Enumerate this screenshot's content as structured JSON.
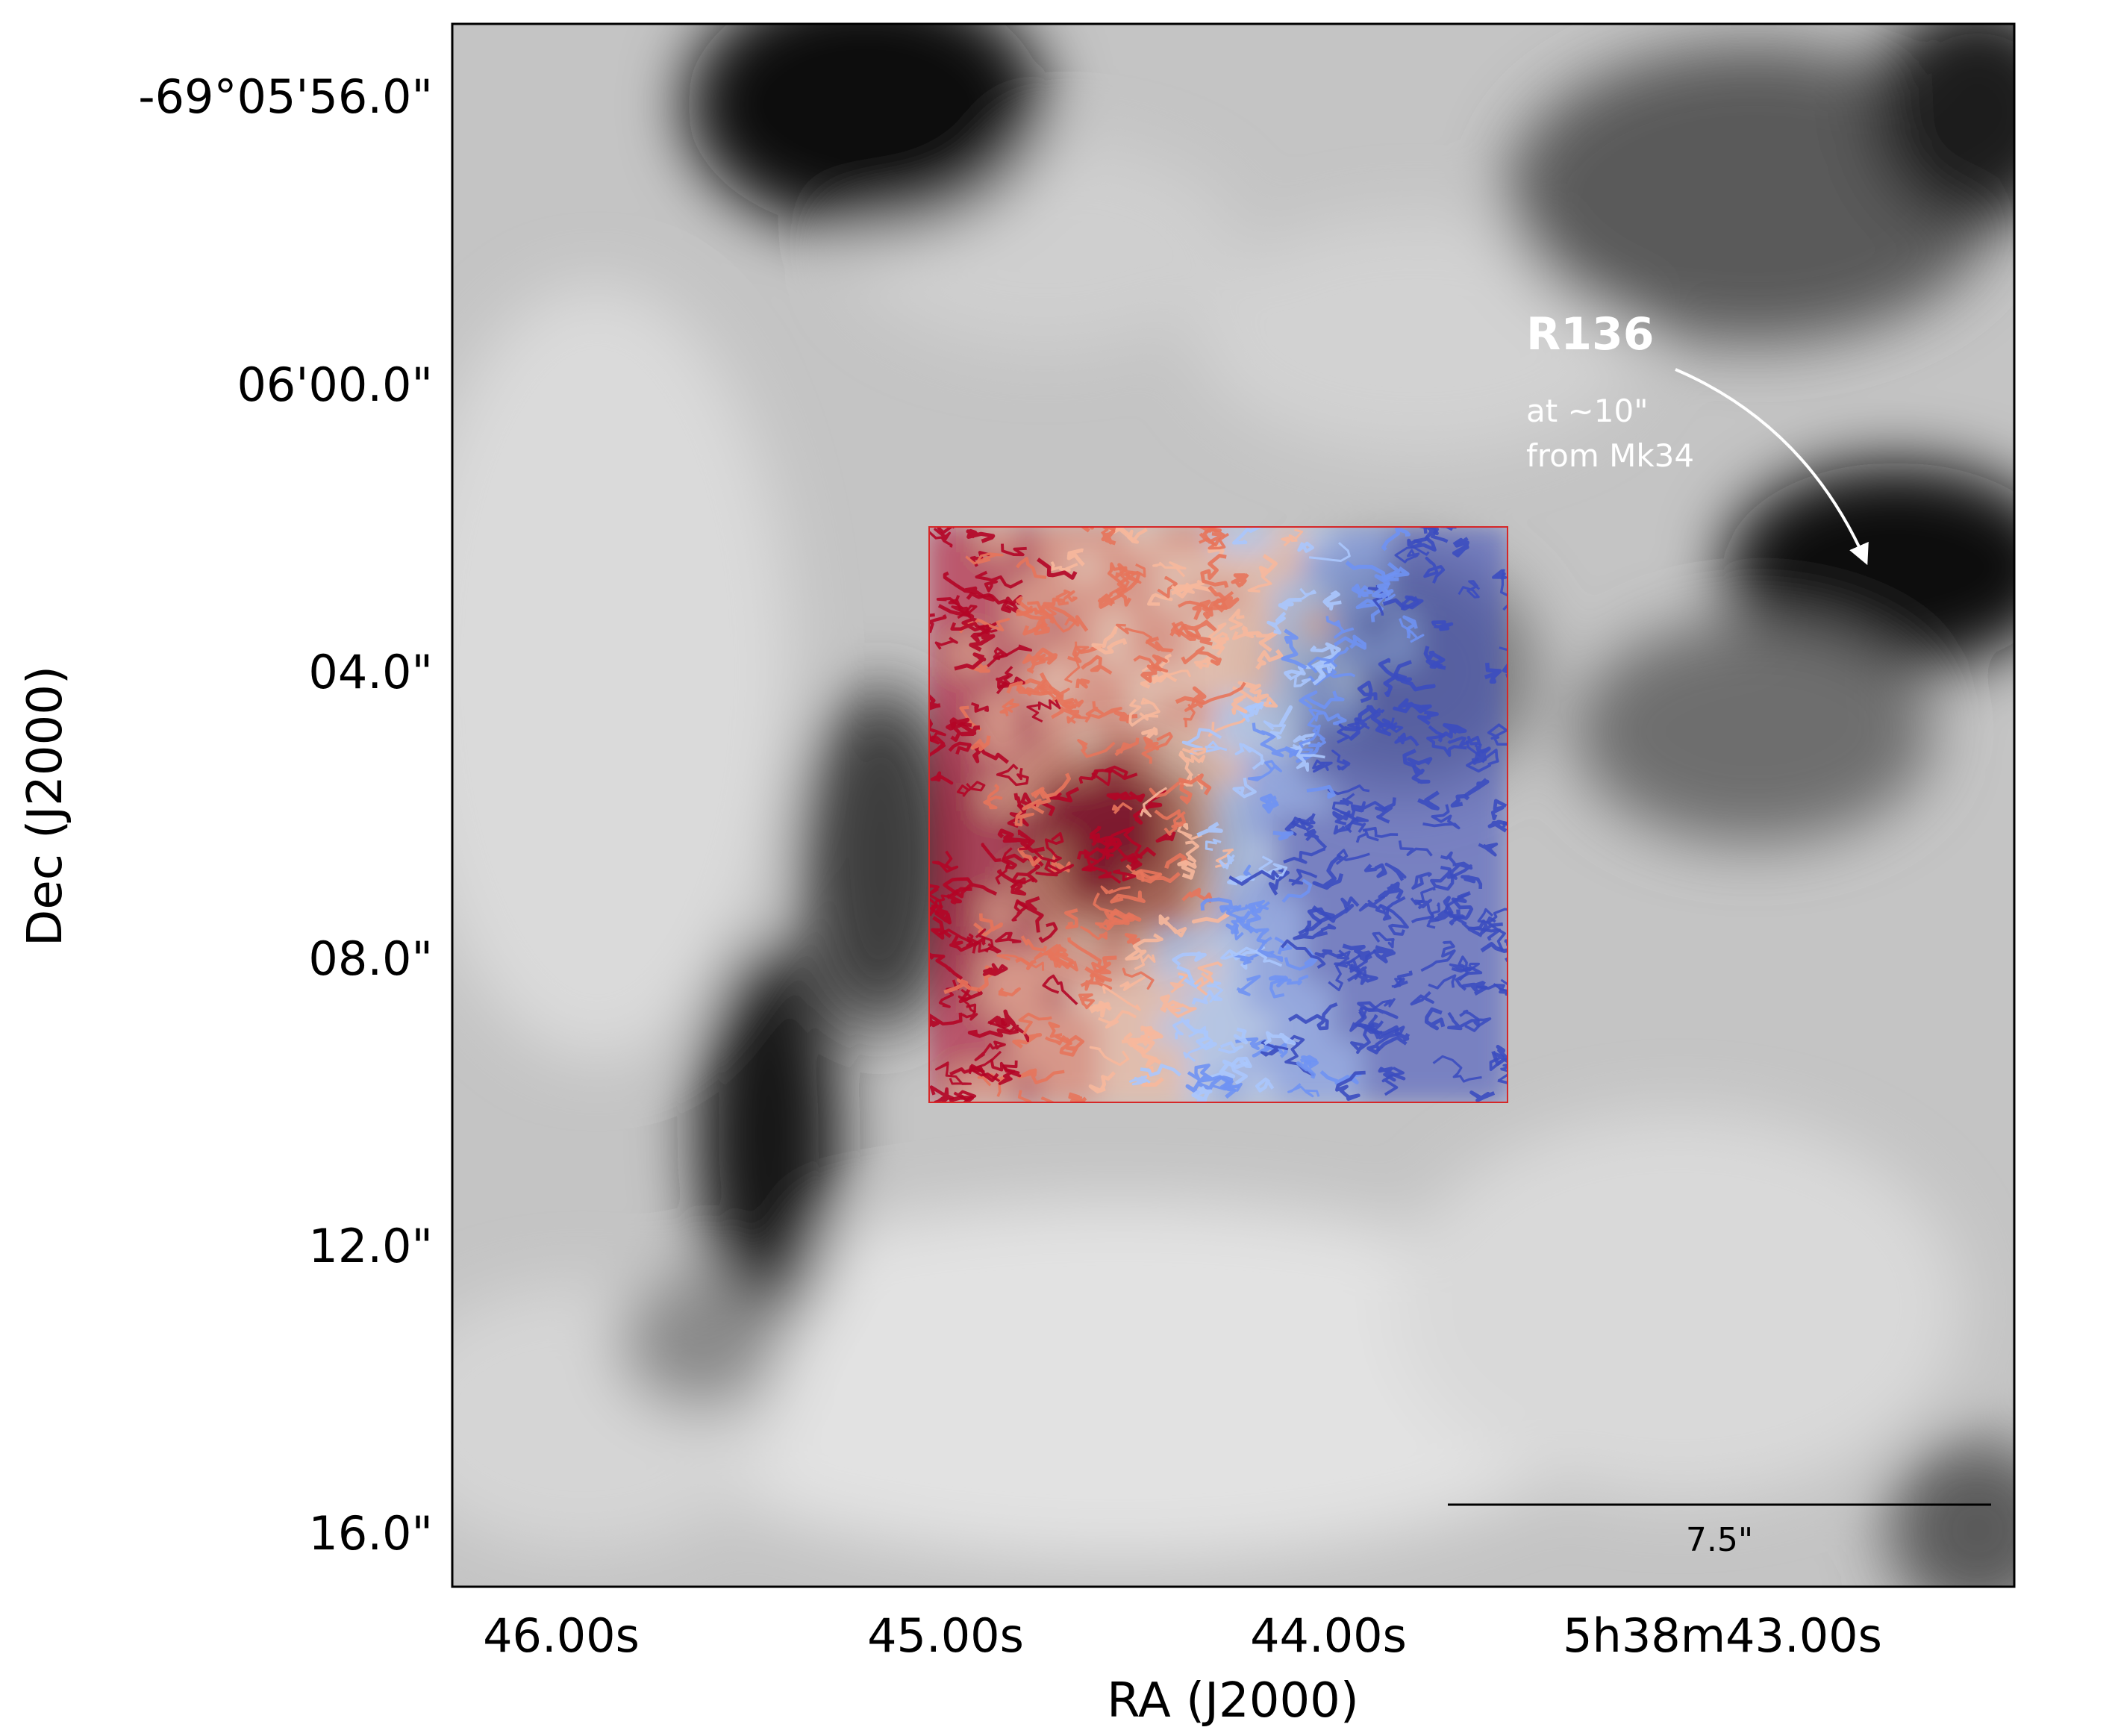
{
  "chart_data": {
    "type": "heatmap",
    "title": "",
    "xlabel": "RA (J2000)",
    "ylabel": "Dec (J2000)",
    "x_ticks": [
      "46.00s",
      "45.00s",
      "44.00s",
      "5h38m43.00s"
    ],
    "y_ticks": [
      "-69°05'56.0\"",
      "06'00.0\"",
      "04.0\"",
      "08.0\"",
      "12.0\"",
      "16.0\""
    ],
    "background": {
      "colormap": "greyscale",
      "description_features": [
        "dark-top-left-blob",
        "dark-diagonal-lane",
        "dark-right-blob"
      ]
    },
    "overlay": {
      "frame_color": "#d62728",
      "colormap": "coolwarm",
      "contour_colors": [
        "#3b4cc0",
        "#6f92f3",
        "#aac7fd",
        "#f7b89c",
        "#e7745b",
        "#b40426"
      ]
    },
    "annotation": {
      "label": "R136",
      "sublabel_line1": "at ~10\"",
      "sublabel_line2": "from Mk34",
      "color": "#ffffff"
    },
    "scalebar": {
      "label": "7.5\"",
      "arcsec": 7.5
    }
  }
}
